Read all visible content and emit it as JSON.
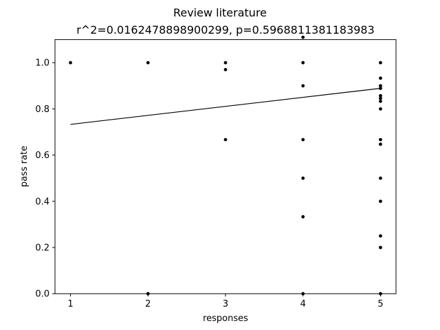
{
  "chart_data": {
    "type": "scatter",
    "title": "Review literature",
    "subtitle": "r^2=0.0162478898900299, p=0.5968811381183983",
    "xlabel": "responses",
    "ylabel": "pass rate",
    "xlim": [
      0.8,
      5.2
    ],
    "ylim": [
      0.0,
      1.1
    ],
    "xticks": [
      1,
      2,
      3,
      4,
      5
    ],
    "xtick_labels": [
      "1",
      "2",
      "3",
      "4",
      "5"
    ],
    "yticks": [
      0.0,
      0.2,
      0.4,
      0.6,
      0.8,
      1.0
    ],
    "ytick_labels": [
      "0.0",
      "0.2",
      "0.4",
      "0.6",
      "0.8",
      "1.0"
    ],
    "grid": false,
    "colors": {
      "points": "#000000",
      "fit_line": "#000000",
      "axes": "#000000"
    },
    "points": [
      {
        "x": 1,
        "y": 1.0
      },
      {
        "x": 2,
        "y": 1.0
      },
      {
        "x": 2,
        "y": 0.0
      },
      {
        "x": 3,
        "y": 1.0
      },
      {
        "x": 3,
        "y": 0.97
      },
      {
        "x": 3,
        "y": 0.667
      },
      {
        "x": 4,
        "y": 1.11
      },
      {
        "x": 4,
        "y": 1.0
      },
      {
        "x": 4,
        "y": 0.9
      },
      {
        "x": 4,
        "y": 0.667
      },
      {
        "x": 4,
        "y": 0.5
      },
      {
        "x": 4,
        "y": 0.333
      },
      {
        "x": 4,
        "y": 0.0
      },
      {
        "x": 5,
        "y": 1.0
      },
      {
        "x": 5,
        "y": 0.933
      },
      {
        "x": 5,
        "y": 0.9
      },
      {
        "x": 5,
        "y": 0.889
      },
      {
        "x": 5,
        "y": 0.857
      },
      {
        "x": 5,
        "y": 0.846
      },
      {
        "x": 5,
        "y": 0.833
      },
      {
        "x": 5,
        "y": 0.8
      },
      {
        "x": 5,
        "y": 0.667
      },
      {
        "x": 5,
        "y": 0.647
      },
      {
        "x": 5,
        "y": 0.5
      },
      {
        "x": 5,
        "y": 0.4
      },
      {
        "x": 5,
        "y": 0.25
      },
      {
        "x": 5,
        "y": 0.2
      },
      {
        "x": 5,
        "y": 0.0
      }
    ],
    "fit_line": {
      "x": [
        1,
        5
      ],
      "y": [
        0.733,
        0.889
      ]
    }
  }
}
